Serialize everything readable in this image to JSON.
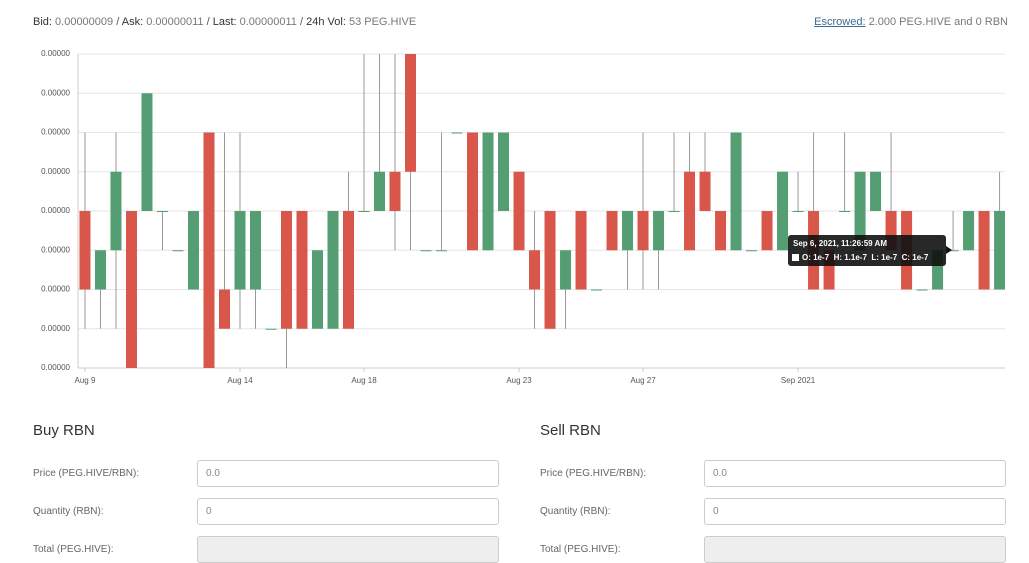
{
  "header": {
    "stats": [
      {
        "label": "Bid:",
        "value": "0.00000009"
      },
      {
        "label": "Ask:",
        "value": "0.00000011"
      },
      {
        "label": "Last:",
        "value": "0.00000011"
      },
      {
        "label": "24h Vol:",
        "value": "53 PEG.HIVE"
      }
    ],
    "separator": "/",
    "escrow_link": "Escrowed:",
    "escrow_text": "2.000 PEG.HIVE and 0 RBN"
  },
  "chart_data": {
    "type": "candlestick",
    "up_color": "#559d73",
    "down_color": "#d9574a",
    "grid": true,
    "categories": [
      null,
      null,
      null,
      null,
      null,
      null,
      null,
      null,
      null,
      null,
      null,
      null,
      null,
      null,
      null,
      null,
      null,
      null,
      null,
      null,
      null,
      null,
      null,
      null,
      null,
      null,
      null,
      null,
      null,
      null,
      null,
      null,
      null,
      null,
      null,
      null,
      null,
      null,
      null,
      null,
      null,
      null,
      null,
      null,
      null,
      null,
      null,
      null,
      null,
      null,
      null,
      null,
      null,
      null,
      null,
      null,
      null,
      null,
      null,
      null
    ],
    "open": [
      1e-07,
      8e-08,
      9e-08,
      1e-07,
      1e-07,
      1e-07,
      9e-08,
      8e-08,
      1.2e-07,
      8e-08,
      8e-08,
      8e-08,
      7e-08,
      1e-07,
      1e-07,
      7e-08,
      7e-08,
      1e-07,
      1e-07,
      1e-07,
      1.1e-07,
      1.4e-07,
      9e-08,
      9e-08,
      1.2e-07,
      1.2e-07,
      9e-08,
      1e-07,
      1.1e-07,
      9e-08,
      1e-07,
      8e-08,
      1e-07,
      8e-08,
      1e-07,
      9e-08,
      1e-07,
      9e-08,
      1e-07,
      1.1e-07,
      1.1e-07,
      1e-07,
      9e-08,
      9e-08,
      1e-07,
      9e-08,
      1e-07,
      1e-07,
      9e-08,
      1e-07,
      9e-08,
      1e-07,
      1e-07,
      1e-07,
      8e-08,
      8e-08,
      9e-08,
      9e-08,
      1e-07,
      8e-08
    ],
    "high": [
      1.2e-07,
      9e-08,
      1.2e-07,
      1e-07,
      1.3e-07,
      1e-07,
      9e-08,
      1e-07,
      1.2e-07,
      1.2e-07,
      1.2e-07,
      1e-07,
      7e-08,
      1e-07,
      1e-07,
      9e-08,
      1e-07,
      1.1e-07,
      1.4e-07,
      1.4e-07,
      1.4e-07,
      1.4e-07,
      9e-08,
      1.2e-07,
      1.2e-07,
      1.2e-07,
      1.2e-07,
      1.2e-07,
      1.1e-07,
      1e-07,
      1e-07,
      9e-08,
      1e-07,
      8e-08,
      1e-07,
      1e-07,
      1.2e-07,
      1e-07,
      1.2e-07,
      1.2e-07,
      1.2e-07,
      1e-07,
      1.2e-07,
      9e-08,
      1e-07,
      1.1e-07,
      1.1e-07,
      1.2e-07,
      9e-08,
      1.2e-07,
      1.1e-07,
      1.1e-07,
      1.2e-07,
      1e-07,
      8e-08,
      9e-08,
      1e-07,
      1e-07,
      1e-07,
      1.1e-07
    ],
    "low": [
      7e-08,
      7e-08,
      7e-08,
      6e-08,
      1e-07,
      9e-08,
      9e-08,
      8e-08,
      6e-08,
      7e-08,
      7e-08,
      7e-08,
      7e-08,
      6e-08,
      7e-08,
      7e-08,
      7e-08,
      7e-08,
      1e-07,
      1e-07,
      9e-08,
      9e-08,
      9e-08,
      9e-08,
      1.2e-07,
      9e-08,
      9e-08,
      1e-07,
      9e-08,
      7e-08,
      7e-08,
      7e-08,
      8e-08,
      8e-08,
      9e-08,
      8e-08,
      8e-08,
      8e-08,
      1e-07,
      9e-08,
      1e-07,
      9e-08,
      9e-08,
      9e-08,
      9e-08,
      9e-08,
      1e-07,
      8e-08,
      8e-08,
      1e-07,
      9e-08,
      1e-07,
      9e-08,
      8e-08,
      8e-08,
      8e-08,
      9e-08,
      9e-08,
      8e-08,
      8e-08
    ],
    "close": [
      8e-08,
      9e-08,
      1.1e-07,
      6e-08,
      1.3e-07,
      1e-07,
      9e-08,
      1e-07,
      6e-08,
      7e-08,
      1e-07,
      1e-07,
      7e-08,
      7e-08,
      7e-08,
      9e-08,
      1e-07,
      7e-08,
      1e-07,
      1.1e-07,
      1e-07,
      1.1e-07,
      9e-08,
      9e-08,
      1.2e-07,
      9e-08,
      1.2e-07,
      1.2e-07,
      9e-08,
      8e-08,
      7e-08,
      9e-08,
      8e-08,
      8e-08,
      9e-08,
      1e-07,
      9e-08,
      1e-07,
      1e-07,
      9e-08,
      1e-07,
      9e-08,
      1.2e-07,
      9e-08,
      9e-08,
      1.1e-07,
      1e-07,
      8e-08,
      8e-08,
      1e-07,
      1.1e-07,
      1.1e-07,
      9e-08,
      8e-08,
      8e-08,
      9e-08,
      9e-08,
      1e-07,
      8e-08,
      1e-07
    ],
    "ylim": [
      6e-08,
      1.4e-07
    ],
    "yticks": [
      {
        "value": 6e-08,
        "label": "0.00000"
      },
      {
        "value": 7e-08,
        "label": "0.00000"
      },
      {
        "value": 8e-08,
        "label": "0.00000"
      },
      {
        "value": 9e-08,
        "label": "0.00000"
      },
      {
        "value": 1e-07,
        "label": "0.00000"
      },
      {
        "value": 1.1e-07,
        "label": "0.00000"
      },
      {
        "value": 1.2e-07,
        "label": "0.00000"
      },
      {
        "value": 1.3e-07,
        "label": "0.00000"
      },
      {
        "value": 1.4e-07,
        "label": "0.00000"
      }
    ],
    "xlim": [
      -0.45,
      59.35
    ],
    "xticks": [
      {
        "value": 0,
        "label": "Aug 9"
      },
      {
        "value": 10,
        "label": "Aug 14"
      },
      {
        "value": 18,
        "label": "Aug 18"
      },
      {
        "value": 28,
        "label": "Aug 23"
      },
      {
        "value": 36,
        "label": "Aug 27"
      },
      {
        "value": 46,
        "label": "Sep 2021"
      }
    ],
    "tooltip": {
      "title": "Sep 6, 2021, 11:26:59 AM",
      "body": "O: 1e-7  H: 1.1e-7  L: 1e-7  C: 1e-7"
    }
  },
  "forms": [
    {
      "title": "Buy RBN",
      "fields": [
        {
          "label": "Price (PEG.HIVE/RBN):",
          "value": "0.0"
        },
        {
          "label": "Quantity (RBN):",
          "value": "0"
        },
        {
          "label": "Total (PEG.HIVE):"
        }
      ]
    },
    {
      "title": "Sell RBN",
      "fields": [
        {
          "label": "Price (PEG.HIVE/RBN):",
          "value": "0.0"
        },
        {
          "label": "Quantity (RBN):",
          "value": "0"
        },
        {
          "label": "Total (PEG.HIVE):"
        }
      ]
    }
  ]
}
